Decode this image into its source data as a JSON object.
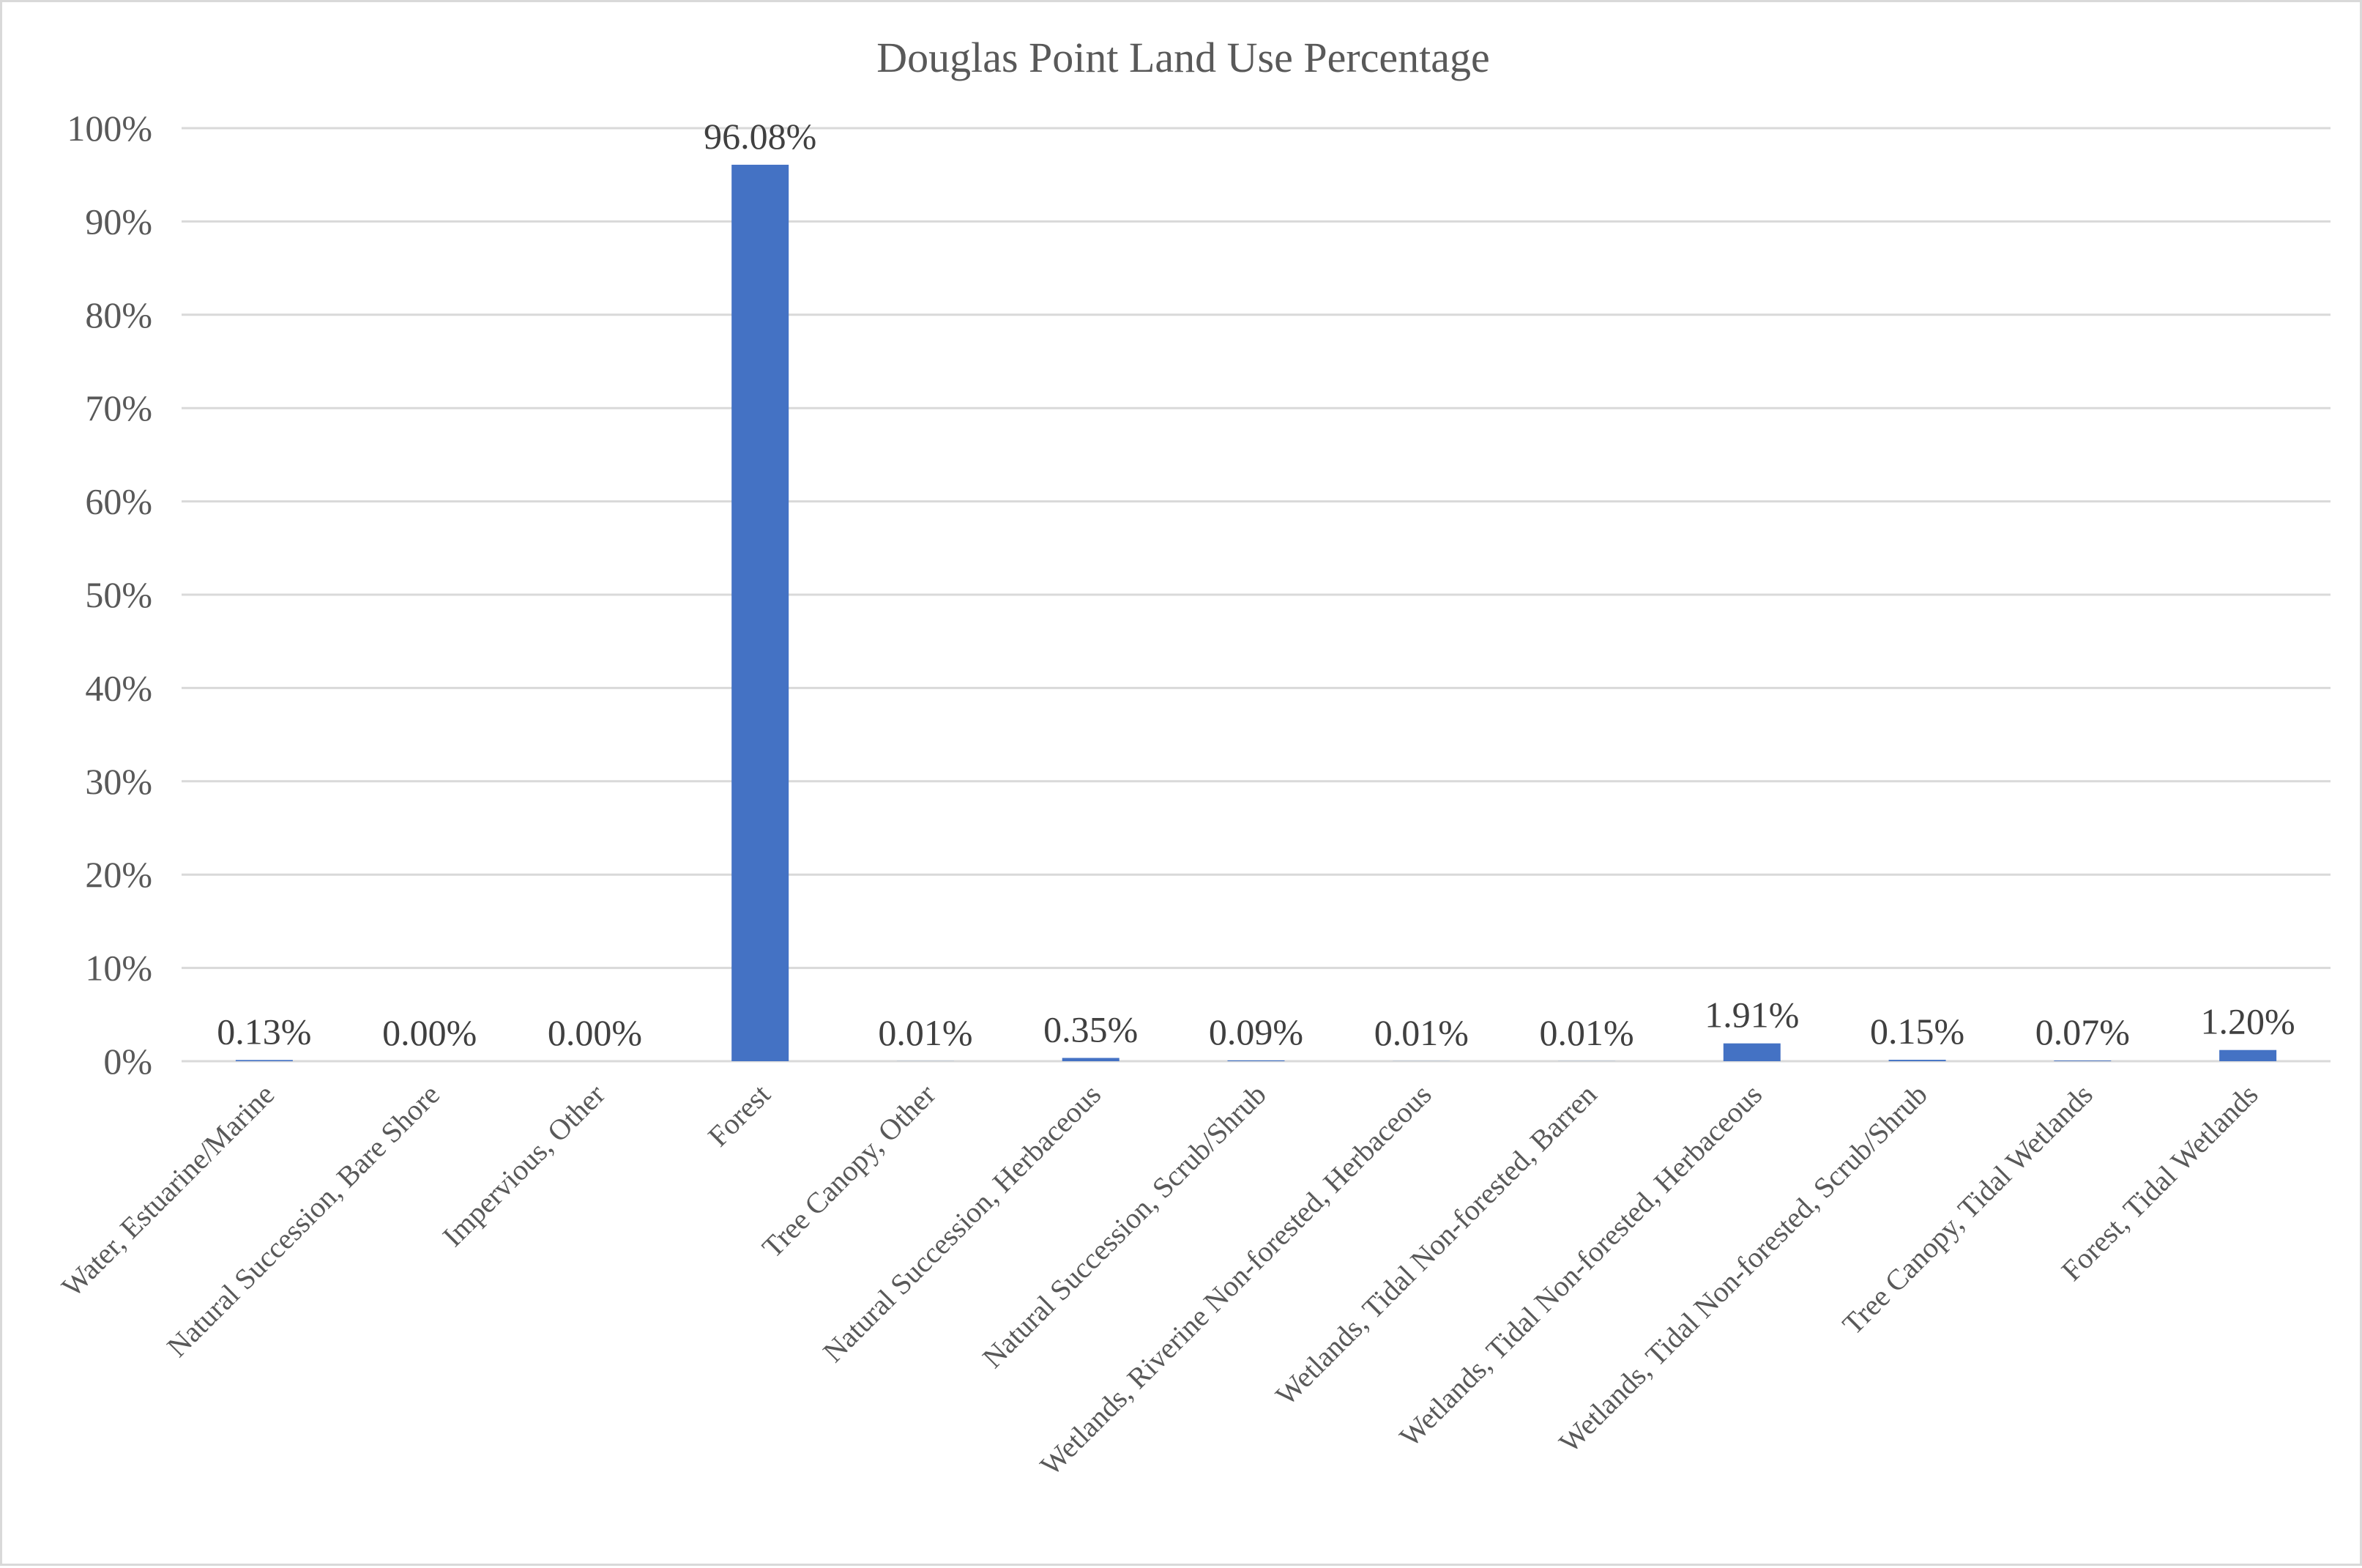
{
  "chart_data": {
    "type": "bar",
    "title": "Douglas Point Land Use Percentage",
    "xlabel": "",
    "ylabel": "",
    "ylim": [
      0,
      100
    ],
    "y_ticks": [
      "0%",
      "10%",
      "20%",
      "30%",
      "40%",
      "50%",
      "60%",
      "70%",
      "80%",
      "90%",
      "100%"
    ],
    "categories": [
      "Water, Estuarine/Marine",
      "Natural Succession, Bare Shore",
      "Impervious, Other",
      "Forest",
      "Tree Canopy, Other",
      "Natural Succession, Herbaceous",
      "Natural Succession, Scrub/Shrub",
      "Wetlands, Riverine Non-forested, Herbaceous",
      "Wetlands, Tidal Non-forested, Barren",
      "Wetlands, Tidal Non-forested, Herbaceous",
      "Wetlands, Tidal Non-forested, Scrub/Shrub",
      "Tree Canopy, Tidal Wetlands",
      "Forest, Tidal Wetlands"
    ],
    "values": [
      0.13,
      0.0,
      0.0,
      96.08,
      0.01,
      0.35,
      0.09,
      0.01,
      0.01,
      1.91,
      0.15,
      0.07,
      1.2
    ],
    "data_labels": [
      "0.13%",
      "0.00%",
      "0.00%",
      "96.08%",
      "0.01%",
      "0.35%",
      "0.09%",
      "0.01%",
      "0.01%",
      "1.91%",
      "0.15%",
      "0.07%",
      "1.20%"
    ],
    "grid": true,
    "legend": "none",
    "bar_color": "#4472C4"
  }
}
